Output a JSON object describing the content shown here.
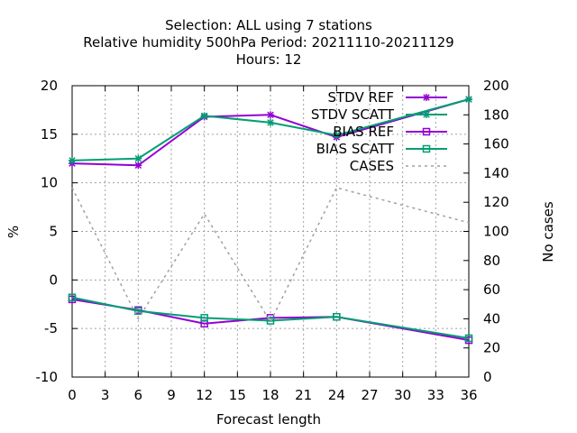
{
  "chart_data": {
    "type": "line",
    "title_lines": [
      "Selection: ALL using     7 stations",
      "Relative humidity 500hPa   Period: 20211110-20211129",
      "Hours:  12"
    ],
    "xlabel": "Forecast length",
    "ylabel": "%",
    "y2label": "No cases",
    "x": [
      0,
      6,
      12,
      18,
      24,
      36
    ],
    "xticks": [
      "0",
      "3",
      "6",
      "9",
      "12",
      "15",
      "18",
      "21",
      "24",
      "27",
      "30",
      "33",
      "36"
    ],
    "xlim": [
      0,
      36
    ],
    "ylim": [
      -10,
      20
    ],
    "yticks": [
      "-10",
      "-5",
      "0",
      "5",
      "10",
      "15",
      "20"
    ],
    "y2lim": [
      0,
      200
    ],
    "y2ticks": [
      "0",
      "20",
      "40",
      "60",
      "80",
      "100",
      "120",
      "140",
      "160",
      "180",
      "200"
    ],
    "grid": true,
    "legend_position": "top-right",
    "series": [
      {
        "name": "STDV REF",
        "axis": "y1",
        "color": "#9400d3",
        "marker": "star",
        "values": [
          12.0,
          11.8,
          16.8,
          17.0,
          14.7,
          18.6
        ]
      },
      {
        "name": "STDV SCATT",
        "axis": "y1",
        "color": "#009e73",
        "marker": "star",
        "values": [
          12.3,
          12.5,
          16.9,
          16.2,
          14.9,
          18.6
        ]
      },
      {
        "name": "BIAS REF",
        "axis": "y1",
        "color": "#9400d3",
        "marker": "square",
        "values": [
          -2.0,
          -3.1,
          -4.5,
          -3.9,
          -3.8,
          -6.2
        ]
      },
      {
        "name": "BIAS SCATT",
        "axis": "y1",
        "color": "#009e73",
        "marker": "square",
        "values": [
          -1.8,
          -3.2,
          -3.9,
          -4.2,
          -3.8,
          -6.0
        ]
      },
      {
        "name": "CASES",
        "axis": "y2",
        "color": "#a0a0a0",
        "marker": "none",
        "dashed": true,
        "values": [
          130,
          40,
          112,
          38,
          130,
          106
        ]
      }
    ]
  }
}
